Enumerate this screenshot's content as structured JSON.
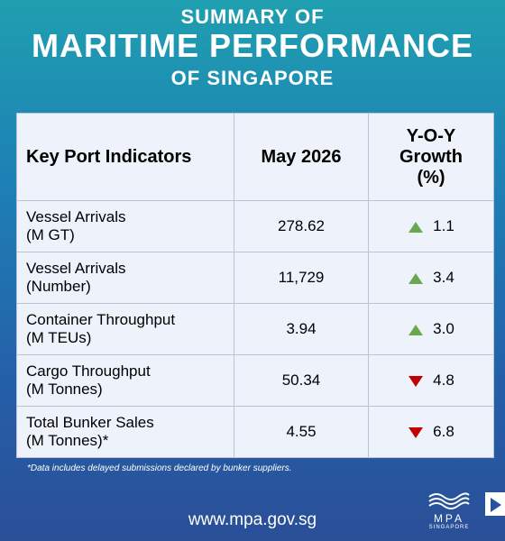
{
  "header": {
    "line1": "SUMMARY OF",
    "line2": "MARITIME PERFORMANCE",
    "line3": "OF SINGAPORE"
  },
  "table": {
    "columns": [
      [
        "Key Port Indicators"
      ],
      [
        "May 2026"
      ],
      [
        "Y-O-Y",
        "Growth",
        "(%)"
      ]
    ],
    "rows": [
      {
        "label": [
          "Vessel Arrivals",
          "(M GT)"
        ],
        "value": "278.62",
        "growth": "1.1",
        "trend": "up"
      },
      {
        "label": [
          "Vessel Arrivals",
          "(Number)"
        ],
        "value": "11,729",
        "growth": "3.4",
        "trend": "up"
      },
      {
        "label": [
          "Container Throughput",
          "(M TEUs)"
        ],
        "value": "3.94",
        "growth": "3.0",
        "trend": "up"
      },
      {
        "label": [
          "Cargo Throughput",
          "(M Tonnes)"
        ],
        "value": "50.34",
        "growth": "4.8",
        "trend": "down"
      },
      {
        "label": [
          "Total Bunker Sales",
          "(M Tonnes)*"
        ],
        "value": "4.55",
        "growth": "6.8",
        "trend": "down"
      }
    ]
  },
  "footnote": "*Data includes delayed submissions declared by bunker suppliers.",
  "website": "www.mpa.gov.sg",
  "logo": {
    "name": "MPA",
    "sub": "SINGAPORE"
  }
}
